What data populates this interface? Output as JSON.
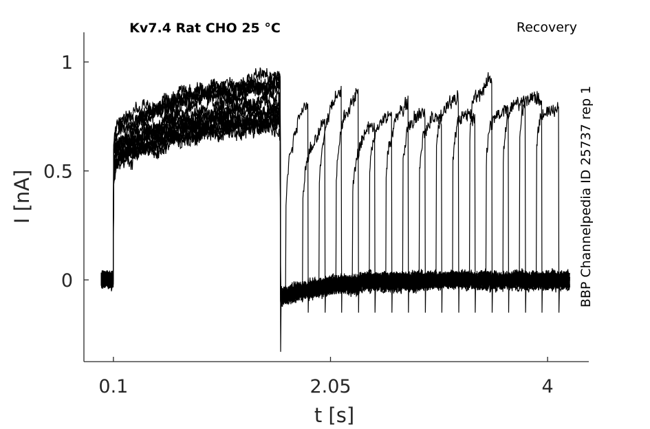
{
  "chart_data": {
    "type": "line",
    "title": "Kv7.4  Rat  CHO  25 °C",
    "protocol_label": "Recovery",
    "side_label": "BBP Channelpedia ID 25737 rep 1",
    "xlabel": "t [s]",
    "ylabel": "I [nA]",
    "xticks": [
      0.1,
      2.05,
      4
    ],
    "xtick_labels": [
      "0.1",
      "2.05",
      "4"
    ],
    "yticks": [
      0,
      0.5,
      1
    ],
    "ytick_labels": [
      "0",
      "0.5",
      "1"
    ],
    "xlim": [
      -0.165,
      4.37
    ],
    "ylim": [
      -0.375,
      1.136
    ],
    "grid": false,
    "line_color": "#000000",
    "sweeps": {
      "count": 16,
      "trace_start": -0.01,
      "trace_end": 4.2,
      "prepulse_on": 0.1,
      "prepulse_off": 1.6,
      "prepulse_amplitude_range": [
        0.72,
        0.98
      ],
      "test_pulse_first_onset": 1.65,
      "test_pulse_onset_step": 0.15,
      "test_pulse_duration": 0.2,
      "test_pulse_amplitude_range": [
        0.75,
        0.92
      ],
      "holding_current": 0.0
    }
  }
}
